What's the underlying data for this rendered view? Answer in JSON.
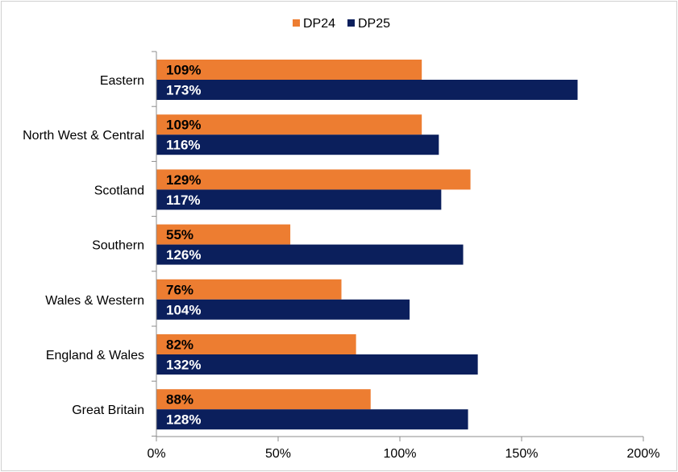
{
  "chart_data": {
    "type": "bar",
    "orientation": "horizontal",
    "categories": [
      "Eastern",
      "North West & Central",
      "Scotland",
      "Southern",
      "Wales &  Western",
      "England & Wales",
      "Great Britain"
    ],
    "series": [
      {
        "name": "DP24",
        "color": "#ED7D31",
        "label_color": "#000000",
        "values": [
          109,
          109,
          129,
          55,
          76,
          82,
          88
        ],
        "labels": [
          "109%",
          "109%",
          "129%",
          "55%",
          "76%",
          "82%",
          "88%"
        ]
      },
      {
        "name": "DP25",
        "color": "#0B1F5C",
        "label_color": "#ffffff",
        "values": [
          173,
          116,
          117,
          126,
          104,
          132,
          128
        ],
        "labels": [
          "173%",
          "116%",
          "117%",
          "126%",
          "104%",
          "132%",
          "128%"
        ]
      }
    ],
    "xlim": [
      0,
      200
    ],
    "xticks": [
      0,
      50,
      100,
      150,
      200
    ],
    "xtick_labels": [
      "0%",
      "50%",
      "100%",
      "150%",
      "200%"
    ],
    "legend_position": "top-center",
    "grid": false
  }
}
